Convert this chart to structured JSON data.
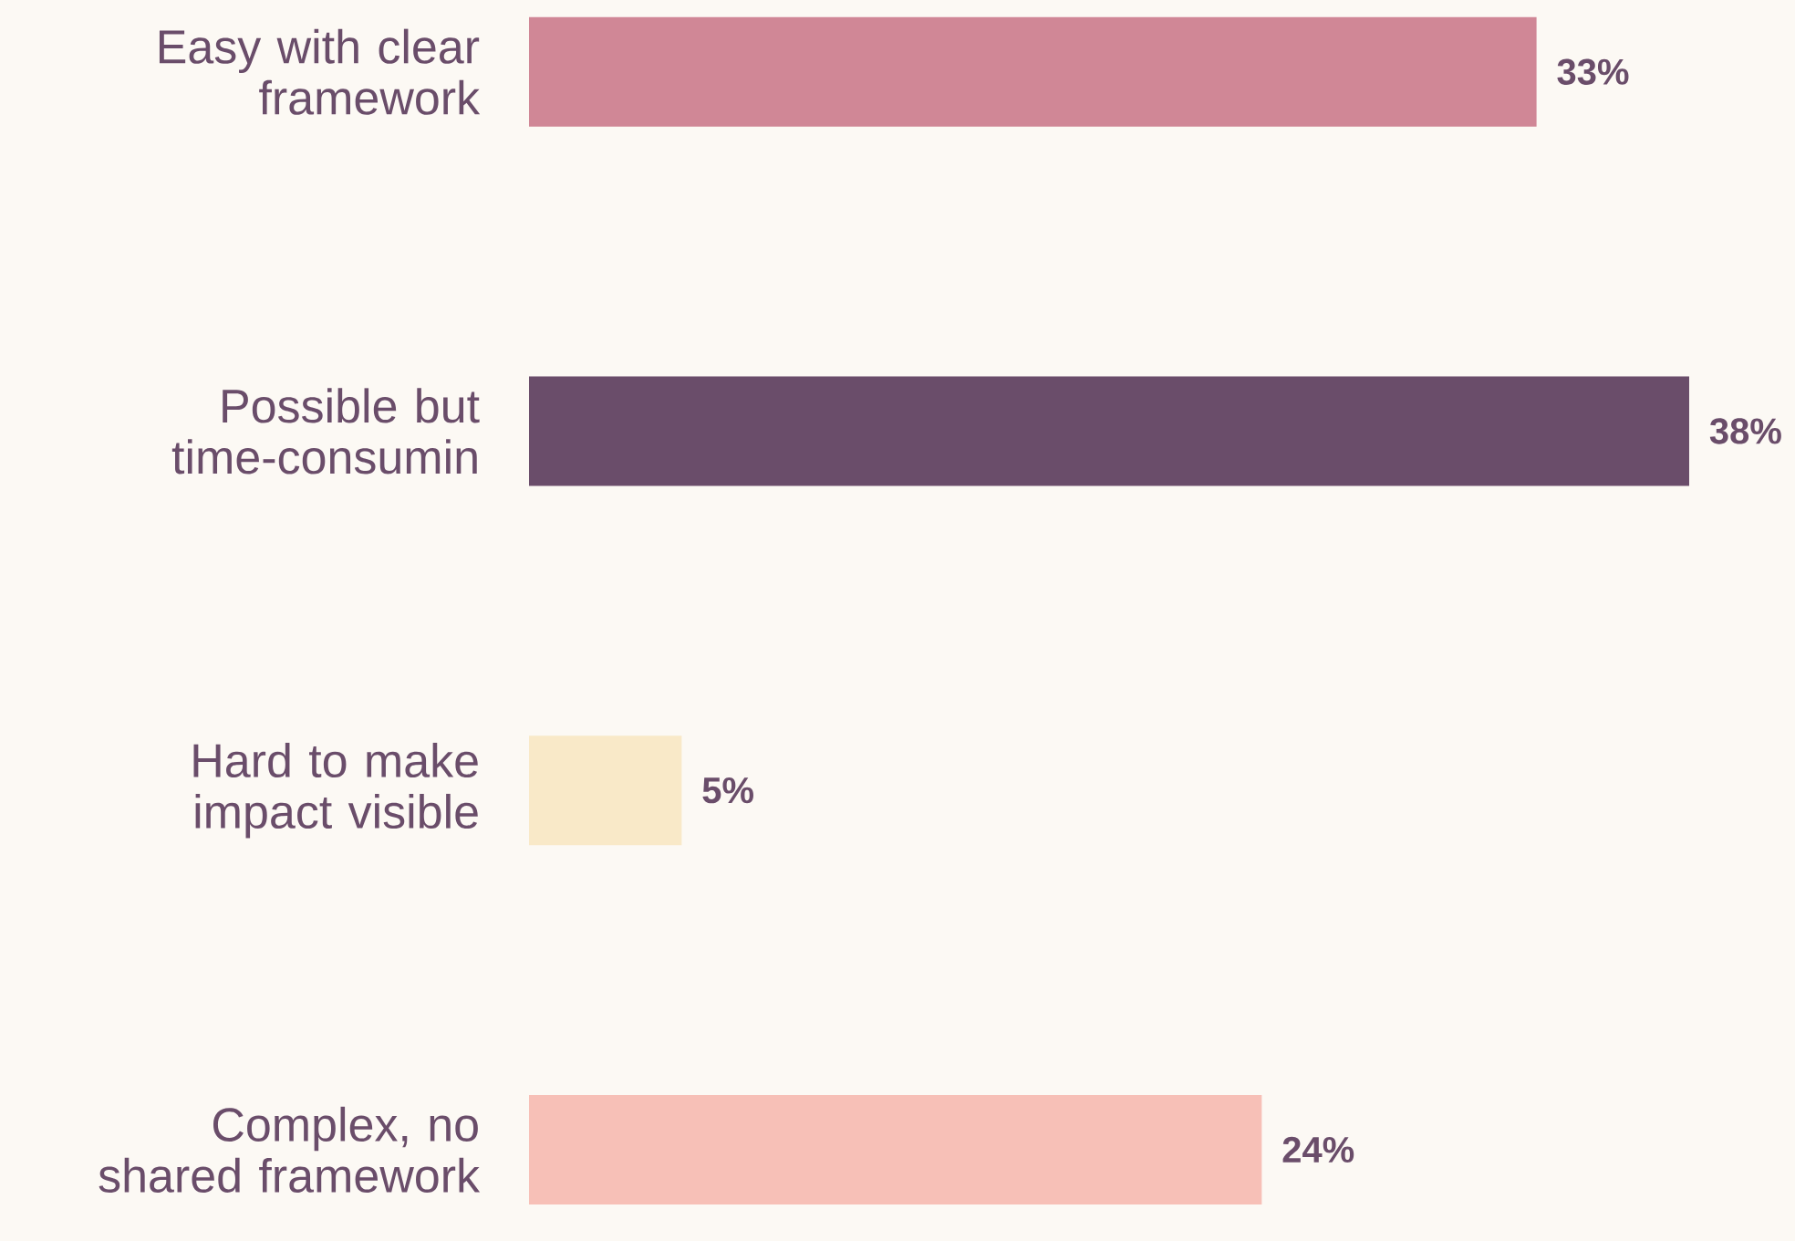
{
  "chart_data": {
    "type": "bar",
    "orientation": "horizontal",
    "categories": [
      "Easy with clear framework",
      "Possible but time-consumin",
      "Hard to make impact visible",
      "Complex, no shared framework"
    ],
    "values": [
      33,
      38,
      5,
      24
    ],
    "colors": [
      "#d08796",
      "#6a4d6a",
      "#f9e9c8",
      "#f7c0b7"
    ],
    "value_labels": [
      "33%",
      "38%",
      "5%",
      "24%"
    ]
  }
}
